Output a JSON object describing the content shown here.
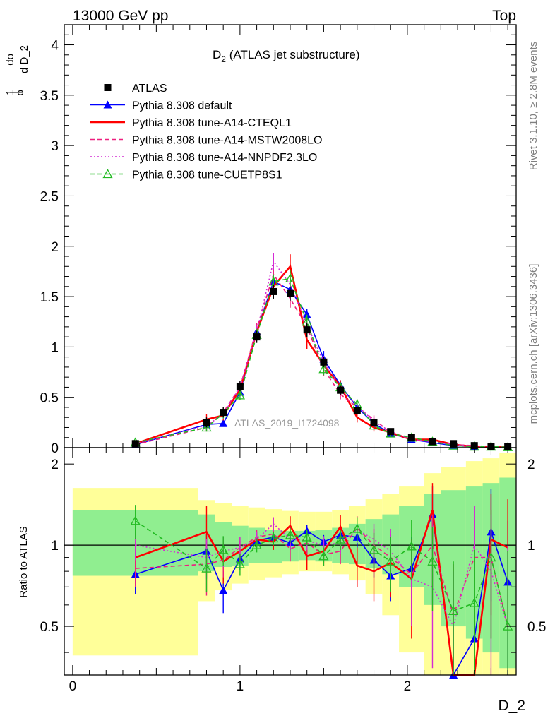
{
  "header": {
    "energy_label": "13000 GeV pp",
    "process_label": "Top"
  },
  "side_texts": {
    "rivet": "Rivet 3.1.10, ≥ 2.8M events",
    "mcplots": "mcplots.cern.ch [arXiv:1306.3436]"
  },
  "top_panel": {
    "title_main": "D",
    "title_sub": "2",
    "title_rest": " (ATLAS jet substructure)",
    "ylabel_parts": [
      "1",
      "σ",
      "dσ",
      "d D_2"
    ],
    "analysis_tag": "ATLAS_2019_I1724098"
  },
  "bottom_panel": {
    "ylabel": "Ratio to ATLAS",
    "xlabel": "D_2"
  },
  "chart_data": [
    {
      "type": "line",
      "panel": "main",
      "xlim": [
        -0.05,
        2.65
      ],
      "ylim": [
        0,
        4.2
      ],
      "y_ticks": [
        0,
        0.5,
        1,
        1.5,
        2,
        2.5,
        3,
        3.5,
        4
      ],
      "y_tick_labels": [
        "0",
        "0.5",
        "1",
        "1.5",
        "2",
        "2.5",
        "3",
        "3.5",
        "4"
      ],
      "legend_position": "top-left",
      "x": [
        0.375,
        0.8,
        0.9,
        1.0,
        1.1,
        1.2,
        1.3,
        1.4,
        1.5,
        1.6,
        1.7,
        1.8,
        1.9,
        2.025,
        2.15,
        2.275,
        2.4,
        2.5,
        2.6
      ],
      "series": [
        {
          "name": "ATLAS",
          "color": "#000000",
          "style": "marker",
          "marker": "square",
          "values": [
            0.04,
            0.25,
            0.35,
            0.61,
            1.1,
            1.55,
            1.53,
            1.17,
            0.85,
            0.57,
            0.37,
            0.25,
            0.16,
            0.1,
            0.06,
            0.04,
            0.02,
            0.01,
            0.01
          ],
          "errors": [
            0.02,
            0.05,
            0.05,
            0.05,
            0.06,
            0.07,
            0.07,
            0.07,
            0.05,
            0.05,
            0.04,
            0.03,
            0.03,
            0.02,
            0.02,
            0.01,
            0.01,
            0.01,
            0.01
          ]
        },
        {
          "name": "Pythia 8.308 default",
          "color": "#0000ff",
          "style": "solid",
          "marker": "triangle",
          "values": [
            0.03,
            0.23,
            0.24,
            0.55,
            1.15,
            1.65,
            1.57,
            1.32,
            0.88,
            0.62,
            0.4,
            0.24,
            0.14,
            0.08,
            0.05,
            0.02,
            0.01,
            0.01,
            0.005
          ],
          "errors": [
            0.01,
            0.03,
            0.03,
            0.04,
            0.05,
            0.05,
            0.05,
            0.06,
            0.08,
            0.05,
            0.04,
            0.03,
            0.02,
            0.02,
            0.01,
            0.01,
            0.01,
            0.01,
            0.005
          ]
        },
        {
          "name": "Pythia 8.308 tune-A14-CTEQL1",
          "color": "#ff0000",
          "style": "solid",
          "marker": "none",
          "values": [
            0.04,
            0.28,
            0.32,
            0.58,
            1.15,
            1.6,
            1.8,
            1.07,
            0.82,
            0.61,
            0.3,
            0.2,
            0.15,
            0.08,
            0.08,
            0.03,
            0.01,
            0.01,
            0.01
          ],
          "errors": [
            0.02,
            0.05,
            0.05,
            0.05,
            0.06,
            0.08,
            0.12,
            0.09,
            0.07,
            0.06,
            0.05,
            0.04,
            0.03,
            0.02,
            0.02,
            0.01,
            0.01,
            0.01,
            0.01
          ]
        },
        {
          "name": "Pythia 8.308 tune-A14-MSTW2008LO",
          "color": "#ee1f7f",
          "style": "dashed",
          "marker": "none",
          "values": [
            0.03,
            0.2,
            0.35,
            0.6,
            1.18,
            1.72,
            1.48,
            1.2,
            0.78,
            0.53,
            0.4,
            0.28,
            0.15,
            0.08,
            0.06,
            0.03,
            0.02,
            0.01,
            0.005
          ],
          "errors": [
            0.02,
            0.04,
            0.05,
            0.05,
            0.06,
            0.08,
            0.09,
            0.08,
            0.07,
            0.05,
            0.05,
            0.04,
            0.03,
            0.02,
            0.02,
            0.01,
            0.01,
            0.01,
            0.005
          ]
        },
        {
          "name": "Pythia 8.308 tune-A14-NNPDF2.3LO",
          "color": "#d42bd4",
          "style": "dotted",
          "marker": "none",
          "values": [
            0.04,
            0.22,
            0.33,
            0.6,
            1.15,
            1.85,
            1.62,
            1.22,
            0.85,
            0.58,
            0.42,
            0.26,
            0.16,
            0.08,
            0.06,
            0.03,
            0.01,
            0.01,
            0.005
          ],
          "errors": [
            0.02,
            0.04,
            0.05,
            0.05,
            0.06,
            0.08,
            0.08,
            0.07,
            0.06,
            0.05,
            0.05,
            0.04,
            0.03,
            0.02,
            0.02,
            0.01,
            0.01,
            0.01,
            0.005
          ]
        },
        {
          "name": "Pythia 8.308 tune-CUETP8S1",
          "color": "#22bb22",
          "style": "dashed",
          "marker": "open-triangle",
          "values": [
            0.05,
            0.2,
            0.34,
            0.52,
            1.12,
            1.65,
            1.68,
            1.25,
            0.78,
            0.6,
            0.43,
            0.22,
            0.14,
            0.1,
            0.06,
            0.02,
            0.01,
            0.01,
            0.005
          ],
          "errors": [
            0.02,
            0.04,
            0.05,
            0.05,
            0.06,
            0.07,
            0.08,
            0.07,
            0.06,
            0.05,
            0.05,
            0.03,
            0.03,
            0.02,
            0.02,
            0.01,
            0.01,
            0.01,
            0.005
          ]
        }
      ]
    },
    {
      "type": "line",
      "panel": "ratio",
      "xlim": [
        -0.05,
        2.65
      ],
      "ylim": [
        0.33,
        2.3
      ],
      "x_ticks": [
        0,
        1,
        2
      ],
      "x_tick_labels": [
        "0",
        "1",
        "2"
      ],
      "y_ticks": [
        0.5,
        1,
        2
      ],
      "y_tick_labels": [
        "0.5",
        "1",
        "2"
      ],
      "reference_line": 1,
      "bands": {
        "edges": [
          0,
          0.75,
          0.85,
          0.95,
          1.05,
          1.15,
          1.25,
          1.35,
          1.45,
          1.55,
          1.65,
          1.75,
          1.85,
          1.95,
          2.1,
          2.2,
          2.35,
          2.45,
          2.55,
          2.65
        ],
        "green_color": "#90ee90",
        "yellow_color": "#ffff99",
        "green": [
          [
            0.77,
            1.35
          ],
          [
            0.8,
            1.3
          ],
          [
            0.83,
            1.22
          ],
          [
            0.84,
            1.18
          ],
          [
            0.86,
            1.16
          ],
          [
            0.86,
            1.14
          ],
          [
            0.87,
            1.13
          ],
          [
            0.88,
            1.13
          ],
          [
            0.87,
            1.14
          ],
          [
            0.86,
            1.16
          ],
          [
            0.85,
            1.2
          ],
          [
            0.82,
            1.25
          ],
          [
            0.78,
            1.3
          ],
          [
            0.7,
            1.4
          ],
          [
            0.6,
            1.55
          ],
          [
            0.5,
            1.6
          ],
          [
            0.45,
            1.65
          ],
          [
            0.4,
            1.7
          ],
          [
            0.35,
            1.78
          ]
        ],
        "yellow": [
          [
            0.39,
            1.63
          ],
          [
            0.62,
            1.47
          ],
          [
            0.68,
            1.43
          ],
          [
            0.72,
            1.4
          ],
          [
            0.74,
            1.38
          ],
          [
            0.76,
            1.36
          ],
          [
            0.78,
            1.34
          ],
          [
            0.8,
            1.33
          ],
          [
            0.8,
            1.33
          ],
          [
            0.78,
            1.35
          ],
          [
            0.74,
            1.4
          ],
          [
            0.66,
            1.48
          ],
          [
            0.55,
            1.55
          ],
          [
            0.4,
            1.65
          ],
          [
            0.33,
            1.85
          ],
          [
            0.33,
            1.95
          ],
          [
            0.33,
            2.05
          ],
          [
            0.33,
            2.1
          ],
          [
            0.33,
            2.2
          ]
        ]
      },
      "x": [
        0.375,
        0.8,
        0.9,
        1.0,
        1.1,
        1.2,
        1.3,
        1.4,
        1.5,
        1.6,
        1.7,
        1.8,
        1.9,
        2.025,
        2.15,
        2.275,
        2.4,
        2.5,
        2.6
      ],
      "series": [
        {
          "name": "Pythia 8.308 default",
          "color": "#0000ff",
          "style": "solid",
          "marker": "triangle",
          "values": [
            0.78,
            0.95,
            0.68,
            0.89,
            1.04,
            1.07,
            1.02,
            1.13,
            1.03,
            1.09,
            1.07,
            0.88,
            0.77,
            0.82,
            1.3,
            0.2,
            0.45,
            1.12,
            0.73
          ],
          "errors": [
            0.12,
            0.15,
            0.12,
            0.08,
            0.06,
            0.06,
            0.06,
            0.06,
            0.06,
            0.07,
            0.09,
            0.12,
            0.15,
            0.25,
            0.35,
            0.3,
            0.4,
            0.5,
            0.5
          ]
        },
        {
          "name": "Pythia 8.308 tune-A14-CTEQL1",
          "color": "#ff0000",
          "style": "solid",
          "marker": "none",
          "values": [
            0.9,
            1.12,
            0.87,
            0.95,
            1.05,
            1.03,
            1.18,
            0.91,
            0.95,
            1.17,
            0.84,
            0.8,
            0.86,
            0.75,
            1.35,
            0.2,
            0.3,
            1.05,
            0.98
          ],
          "errors": [
            0.15,
            0.28,
            0.15,
            0.09,
            0.07,
            0.07,
            0.1,
            0.1,
            0.09,
            0.12,
            0.14,
            0.18,
            0.22,
            0.3,
            0.35,
            0.3,
            0.4,
            0.5,
            0.5
          ]
        },
        {
          "name": "Pythia 8.308 tune-A14-MSTW2008LO",
          "color": "#ee1f7f",
          "style": "dashed",
          "marker": "none",
          "values": [
            0.82,
            0.85,
            0.88,
            0.98,
            1.07,
            1.1,
            0.97,
            1.02,
            0.92,
            0.95,
            1.16,
            1.0,
            0.9,
            0.78,
            1.0,
            0.55,
            0.9,
            0.9,
            0.5
          ],
          "errors": [
            0.12,
            0.2,
            0.12,
            0.09,
            0.07,
            0.07,
            0.1,
            0.09,
            0.08,
            0.1,
            0.12,
            0.15,
            0.2,
            0.25,
            0.3,
            0.3,
            0.35,
            0.45,
            0.45
          ]
        },
        {
          "name": "Pythia 8.308 tune-A14-NNPDF2.3LO",
          "color": "#d42bd4",
          "style": "dotted",
          "marker": "none",
          "values": [
            1.0,
            0.9,
            0.95,
            0.98,
            1.05,
            1.2,
            1.05,
            1.04,
            1.0,
            1.02,
            1.14,
            1.05,
            0.95,
            0.75,
            0.7,
            0.5,
            1.0,
            0.8,
            0.5
          ],
          "errors": [
            0.12,
            0.15,
            0.12,
            0.09,
            0.07,
            0.07,
            0.08,
            0.08,
            0.08,
            0.09,
            0.12,
            0.15,
            0.2,
            0.25,
            0.35,
            0.3,
            0.4,
            0.5,
            0.5
          ]
        },
        {
          "name": "Pythia 8.308 tune-CUETP8S1",
          "color": "#22bb22",
          "style": "dashed",
          "marker": "open-triangle",
          "values": [
            1.23,
            0.82,
            0.96,
            0.85,
            1.0,
            1.06,
            1.09,
            1.07,
            0.91,
            1.05,
            1.15,
            0.96,
            0.87,
            0.99,
            0.87,
            0.57,
            0.61,
            0.9,
            0.5
          ],
          "errors": [
            0.18,
            0.15,
            0.12,
            0.08,
            0.06,
            0.06,
            0.07,
            0.07,
            0.07,
            0.09,
            0.12,
            0.15,
            0.2,
            0.25,
            0.3,
            0.3,
            0.35,
            0.45,
            0.45
          ]
        }
      ]
    }
  ]
}
